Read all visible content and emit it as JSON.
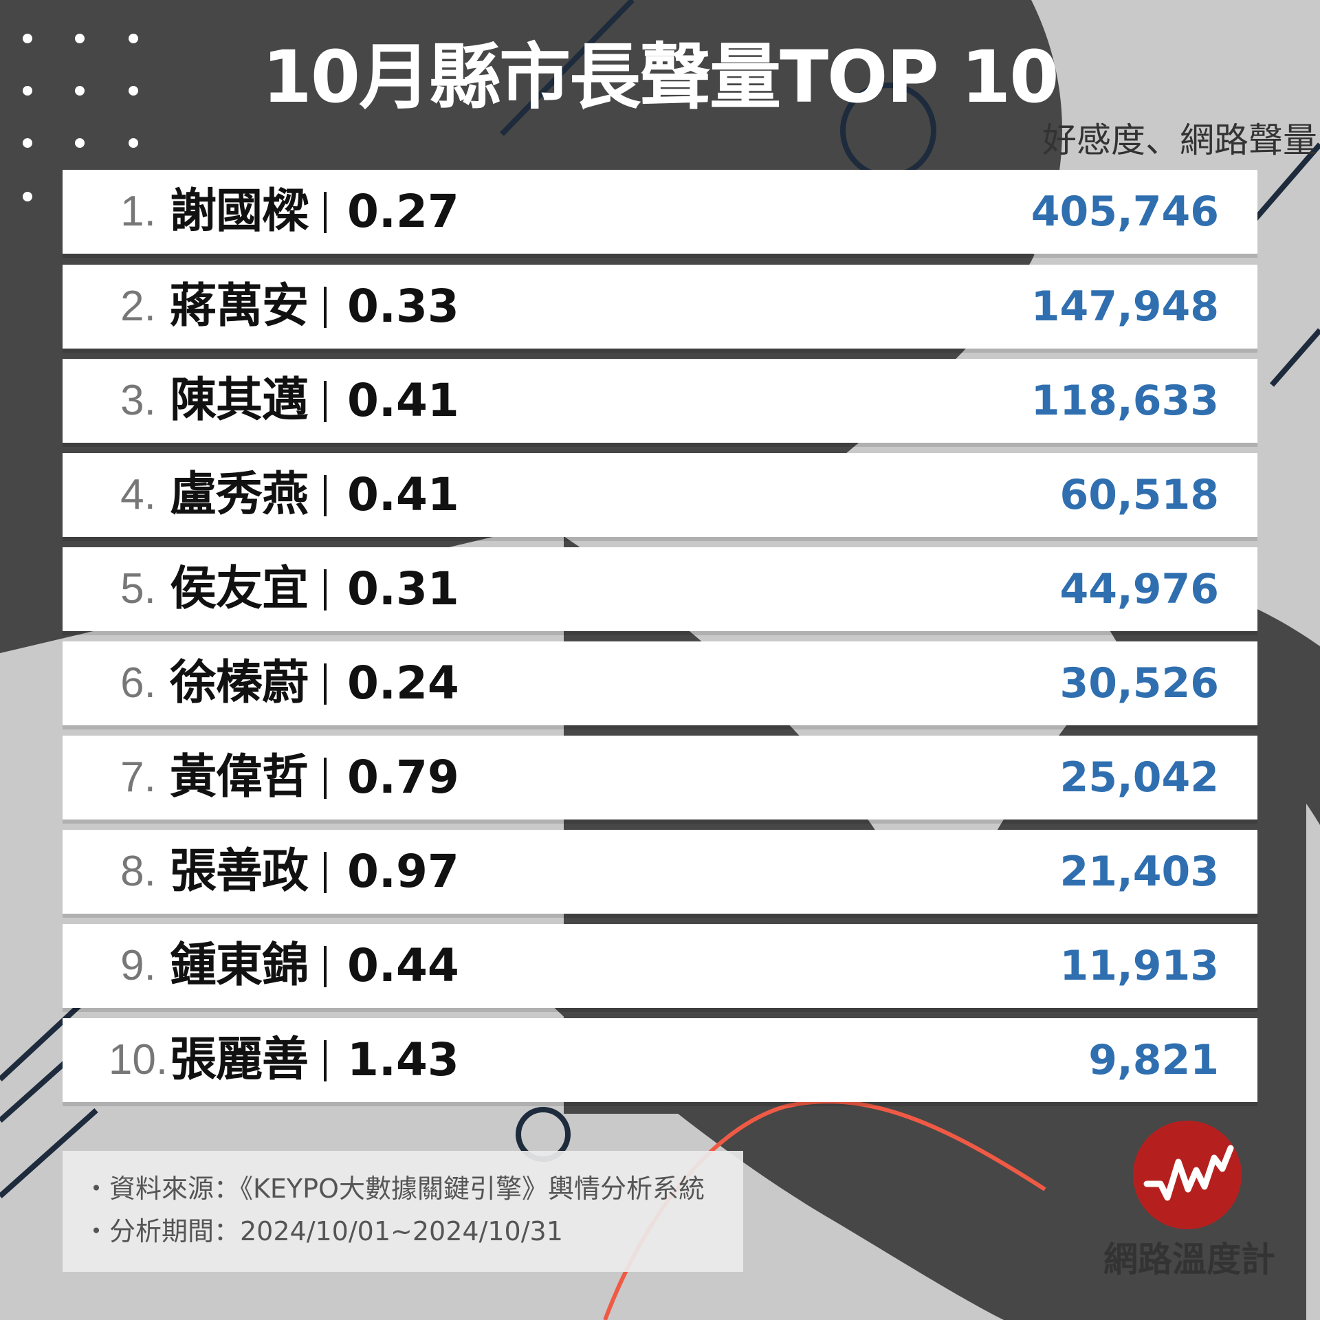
{
  "title": "10月縣市長聲量TOP 10",
  "subtitle": "好感度、網路聲量",
  "colors": {
    "background_light": "#c9c9c9",
    "background_dark": "#474747",
    "line_navy": "#1d2b3c",
    "accent_curve": "#f05a45",
    "volume_blue": "#2f6fb0",
    "logo_red": "#b5201f"
  },
  "rankings": [
    {
      "rank": "1.",
      "name": "謝國樑",
      "score": "0.27",
      "volume": "405,746"
    },
    {
      "rank": "2.",
      "name": "蔣萬安",
      "score": "0.33",
      "volume": "147,948"
    },
    {
      "rank": "3.",
      "name": "陳其邁",
      "score": "0.41",
      "volume": "118,633"
    },
    {
      "rank": "4.",
      "name": "盧秀燕",
      "score": "0.41",
      "volume": "60,518"
    },
    {
      "rank": "5.",
      "name": "侯友宜",
      "score": "0.31",
      "volume": "44,976"
    },
    {
      "rank": "6.",
      "name": "徐榛蔚",
      "score": "0.24",
      "volume": "30,526"
    },
    {
      "rank": "7.",
      "name": "黃偉哲",
      "score": "0.79",
      "volume": "25,042"
    },
    {
      "rank": "8.",
      "name": "張善政",
      "score": "0.97",
      "volume": "21,403"
    },
    {
      "rank": "9.",
      "name": "鍾東錦",
      "score": "0.44",
      "volume": "11,913"
    },
    {
      "rank": "10.",
      "name": "張麗善",
      "score": "1.43",
      "volume": "9,821"
    }
  ],
  "source": {
    "line1": "・資料來源：《KEYPO大數據關鍵引擎》輿情分析系統",
    "line2": "・分析期間：2024/10/01~2024/10/31"
  },
  "logo": {
    "text": "網路溫度計",
    "icon": "pulse-line-icon"
  }
}
